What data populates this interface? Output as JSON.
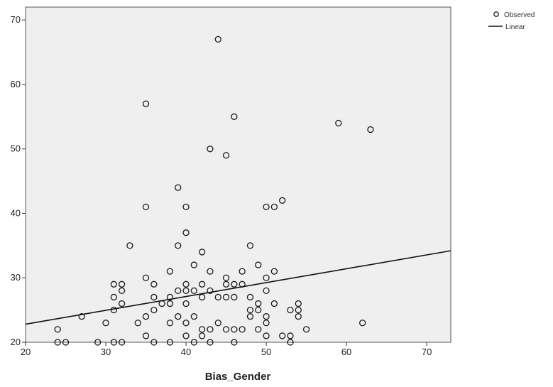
{
  "chart_data": {
    "type": "scatter",
    "xlabel": "Bias_Gender",
    "ylabel": "",
    "xlim": [
      20,
      73
    ],
    "ylim": [
      20,
      72
    ],
    "xticks": [
      20,
      30,
      40,
      50,
      60,
      70
    ],
    "yticks": [
      20,
      30,
      40,
      50,
      60,
      70
    ],
    "grid": false,
    "legend_position": "top-right",
    "series": [
      {
        "name": "Observed",
        "points": [
          [
            24,
            22
          ],
          [
            25,
            20
          ],
          [
            24,
            20
          ],
          [
            27,
            24
          ],
          [
            29,
            20
          ],
          [
            30,
            23
          ],
          [
            31,
            29
          ],
          [
            31,
            27
          ],
          [
            31,
            25
          ],
          [
            31,
            20
          ],
          [
            32,
            29
          ],
          [
            32,
            28
          ],
          [
            32,
            26
          ],
          [
            32,
            20
          ],
          [
            33,
            35
          ],
          [
            34,
            23
          ],
          [
            35,
            30
          ],
          [
            35,
            24
          ],
          [
            35,
            21
          ],
          [
            35,
            41
          ],
          [
            35,
            57
          ],
          [
            36,
            29
          ],
          [
            36,
            27
          ],
          [
            36,
            25
          ],
          [
            36,
            20
          ],
          [
            37,
            26
          ],
          [
            38,
            31
          ],
          [
            38,
            27
          ],
          [
            38,
            26
          ],
          [
            38,
            23
          ],
          [
            38,
            20
          ],
          [
            39,
            44
          ],
          [
            39,
            35
          ],
          [
            39,
            28
          ],
          [
            39,
            24
          ],
          [
            40,
            41
          ],
          [
            40,
            37
          ],
          [
            40,
            29
          ],
          [
            40,
            28
          ],
          [
            40,
            26
          ],
          [
            40,
            23
          ],
          [
            40,
            21
          ],
          [
            41,
            32
          ],
          [
            41,
            28
          ],
          [
            41,
            24
          ],
          [
            41,
            20
          ],
          [
            42,
            34
          ],
          [
            42,
            29
          ],
          [
            42,
            27
          ],
          [
            42,
            22
          ],
          [
            42,
            21
          ],
          [
            43,
            50
          ],
          [
            43,
            31
          ],
          [
            43,
            28
          ],
          [
            43,
            22
          ],
          [
            43,
            20
          ],
          [
            44,
            67
          ],
          [
            44,
            27
          ],
          [
            44,
            23
          ],
          [
            45,
            49
          ],
          [
            45,
            30
          ],
          [
            45,
            29
          ],
          [
            45,
            27
          ],
          [
            45,
            22
          ],
          [
            46,
            55
          ],
          [
            46,
            29
          ],
          [
            46,
            27
          ],
          [
            46,
            22
          ],
          [
            46,
            20
          ],
          [
            47,
            31
          ],
          [
            47,
            29
          ],
          [
            47,
            22
          ],
          [
            48,
            35
          ],
          [
            48,
            27
          ],
          [
            48,
            25
          ],
          [
            48,
            24
          ],
          [
            49,
            32
          ],
          [
            49,
            26
          ],
          [
            49,
            25
          ],
          [
            49,
            22
          ],
          [
            50,
            41
          ],
          [
            50,
            30
          ],
          [
            50,
            28
          ],
          [
            50,
            24
          ],
          [
            50,
            23
          ],
          [
            50,
            21
          ],
          [
            51,
            41
          ],
          [
            51,
            31
          ],
          [
            51,
            26
          ],
          [
            52,
            42
          ],
          [
            52,
            21
          ],
          [
            53,
            25
          ],
          [
            53,
            21
          ],
          [
            53,
            20
          ],
          [
            54,
            26
          ],
          [
            54,
            25
          ],
          [
            54,
            24
          ],
          [
            55,
            22
          ],
          [
            59,
            54
          ],
          [
            62,
            23
          ],
          [
            63,
            53
          ]
        ]
      },
      {
        "name": "Linear",
        "line": [
          [
            20,
            22.8
          ],
          [
            73,
            34.2
          ]
        ]
      }
    ]
  },
  "legend": {
    "observed_label": "Observed",
    "linear_label": "Linear"
  }
}
